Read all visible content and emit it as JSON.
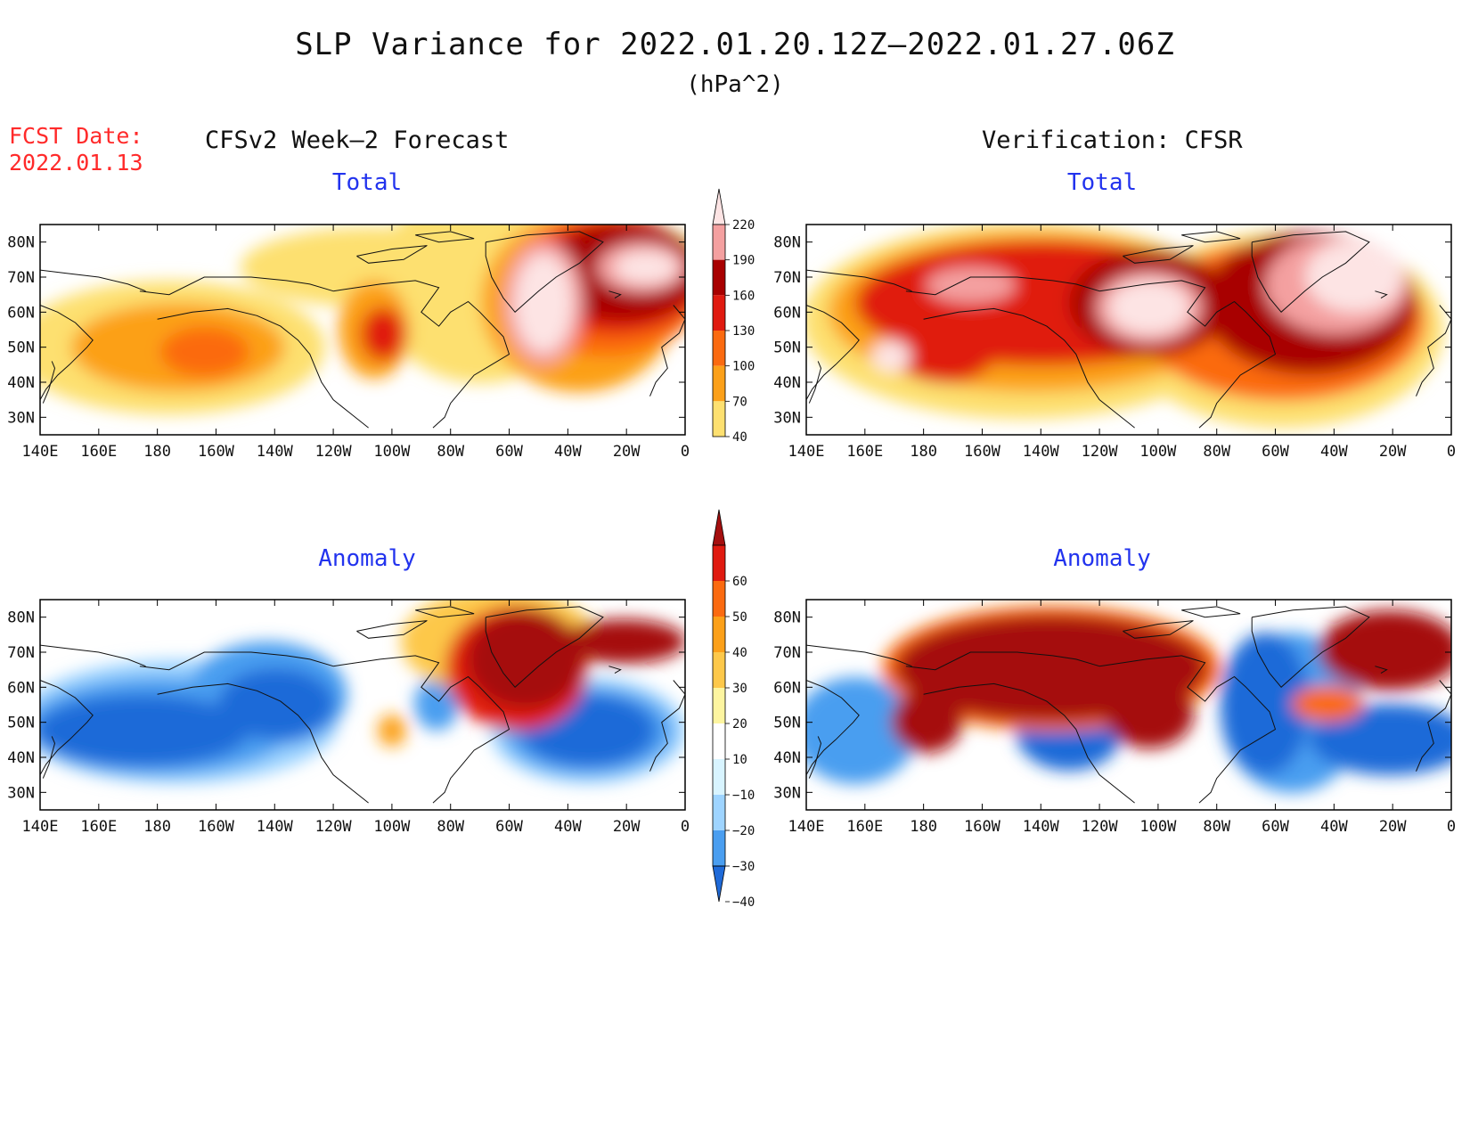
{
  "title": "SLP Variance for 2022.01.20.12Z—2022.01.27.06Z",
  "units": "(hPa^2)",
  "fcst_date_label": "FCST Date:",
  "fcst_date_value": "2022.01.13",
  "left_column_header": "CFSv2 Week—2 Forecast",
  "right_column_header": "Verification: CFSR",
  "panels": [
    {
      "id": "forecast-total",
      "title": "Total",
      "field": "total"
    },
    {
      "id": "verification-total",
      "title": "Total",
      "field": "total"
    },
    {
      "id": "forecast-anomaly",
      "title": "Anomaly",
      "field": "anomaly"
    },
    {
      "id": "verification-anomaly",
      "title": "Anomaly",
      "field": "anomaly"
    }
  ],
  "lon_ticks": [
    "140E",
    "160E",
    "180",
    "160W",
    "140W",
    "120W",
    "100W",
    "80W",
    "60W",
    "40W",
    "20W",
    "0"
  ],
  "lat_ticks": [
    "80N",
    "70N",
    "60N",
    "50N",
    "40N",
    "30N"
  ],
  "total_colorbar": {
    "labels": [
      "220",
      "190",
      "160",
      "130",
      "100",
      "70",
      "40"
    ],
    "colors": [
      "#fde4e4",
      "#f4a0a0",
      "#a80000",
      "#e01a10",
      "#fb6a10",
      "#fca019",
      "#fde070"
    ]
  },
  "anomaly_colorbar": {
    "labels": [
      "60",
      "50",
      "40",
      "30",
      "20",
      "10",
      "−10",
      "−20",
      "−30",
      "−40"
    ],
    "colors": [
      "#a50f0f",
      "#e01a10",
      "#fb6a10",
      "#fca019",
      "#fdc84a",
      "#fdf5a0",
      "#ffffff",
      "#d8f4ff",
      "#9ed4ff",
      "#4a9ef0",
      "#1f6ad8"
    ]
  }
}
